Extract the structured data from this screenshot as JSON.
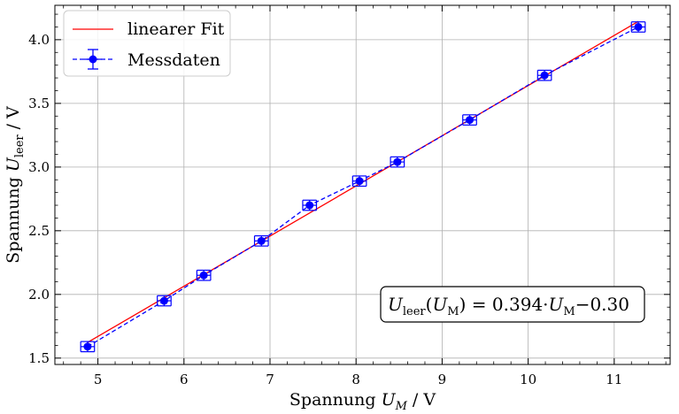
{
  "chart_data": {
    "type": "scatter",
    "xlabel": "Spannung U_M / V",
    "xlabel_parts": {
      "prefix": "Spannung ",
      "symbol": "U",
      "sub": "M",
      "unit": " / V"
    },
    "ylabel": "Spannung U_leer / V",
    "ylabel_parts": {
      "prefix": "Spannung ",
      "symbol": "U",
      "sub": "leer",
      "unit": " / V"
    },
    "xlim": [
      4.5,
      11.65
    ],
    "ylim": [
      1.45,
      4.27
    ],
    "x_ticks": [
      5,
      6,
      7,
      8,
      9,
      10,
      11
    ],
    "y_ticks": [
      1.5,
      2.0,
      2.5,
      3.0,
      3.5,
      4.0
    ],
    "x_tick_labels": [
      "5",
      "6",
      "7",
      "8",
      "9",
      "10",
      "11"
    ],
    "y_tick_labels": [
      "1.5",
      "2.0",
      "2.5",
      "3.0",
      "3.5",
      "4.0"
    ],
    "grid": true,
    "legend_position": "top-left",
    "series": [
      {
        "name": "linearer Fit",
        "kind": "line",
        "color": "#ff0000",
        "slope": 0.394,
        "intercept": -0.3,
        "x": [
          4.88,
          11.28
        ],
        "y": [
          1.623,
          4.144
        ]
      },
      {
        "name": "Messdaten",
        "kind": "errorbar",
        "color": "#0000ff",
        "linestyle": "dashed",
        "x": [
          4.88,
          5.77,
          6.23,
          6.9,
          7.46,
          8.04,
          8.48,
          9.32,
          10.19,
          11.28
        ],
        "y": [
          1.59,
          1.95,
          2.15,
          2.42,
          2.7,
          2.89,
          3.04,
          3.37,
          3.72,
          4.1
        ],
        "x_err": [
          0.08,
          0.08,
          0.08,
          0.08,
          0.08,
          0.08,
          0.08,
          0.08,
          0.08,
          0.08
        ],
        "y_err": [
          0.04,
          0.04,
          0.04,
          0.04,
          0.04,
          0.04,
          0.04,
          0.04,
          0.04,
          0.04
        ]
      }
    ],
    "annotation": {
      "lhs_symbol": "U",
      "lhs_sub": "leer",
      "arg_symbol": "U",
      "arg_sub": "M",
      "equals": " = ",
      "coef": "0.394",
      "dot": "·",
      "rhs_symbol": "U",
      "rhs_sub": "M",
      "offset": "−0.30",
      "position": "bottom-right"
    }
  }
}
